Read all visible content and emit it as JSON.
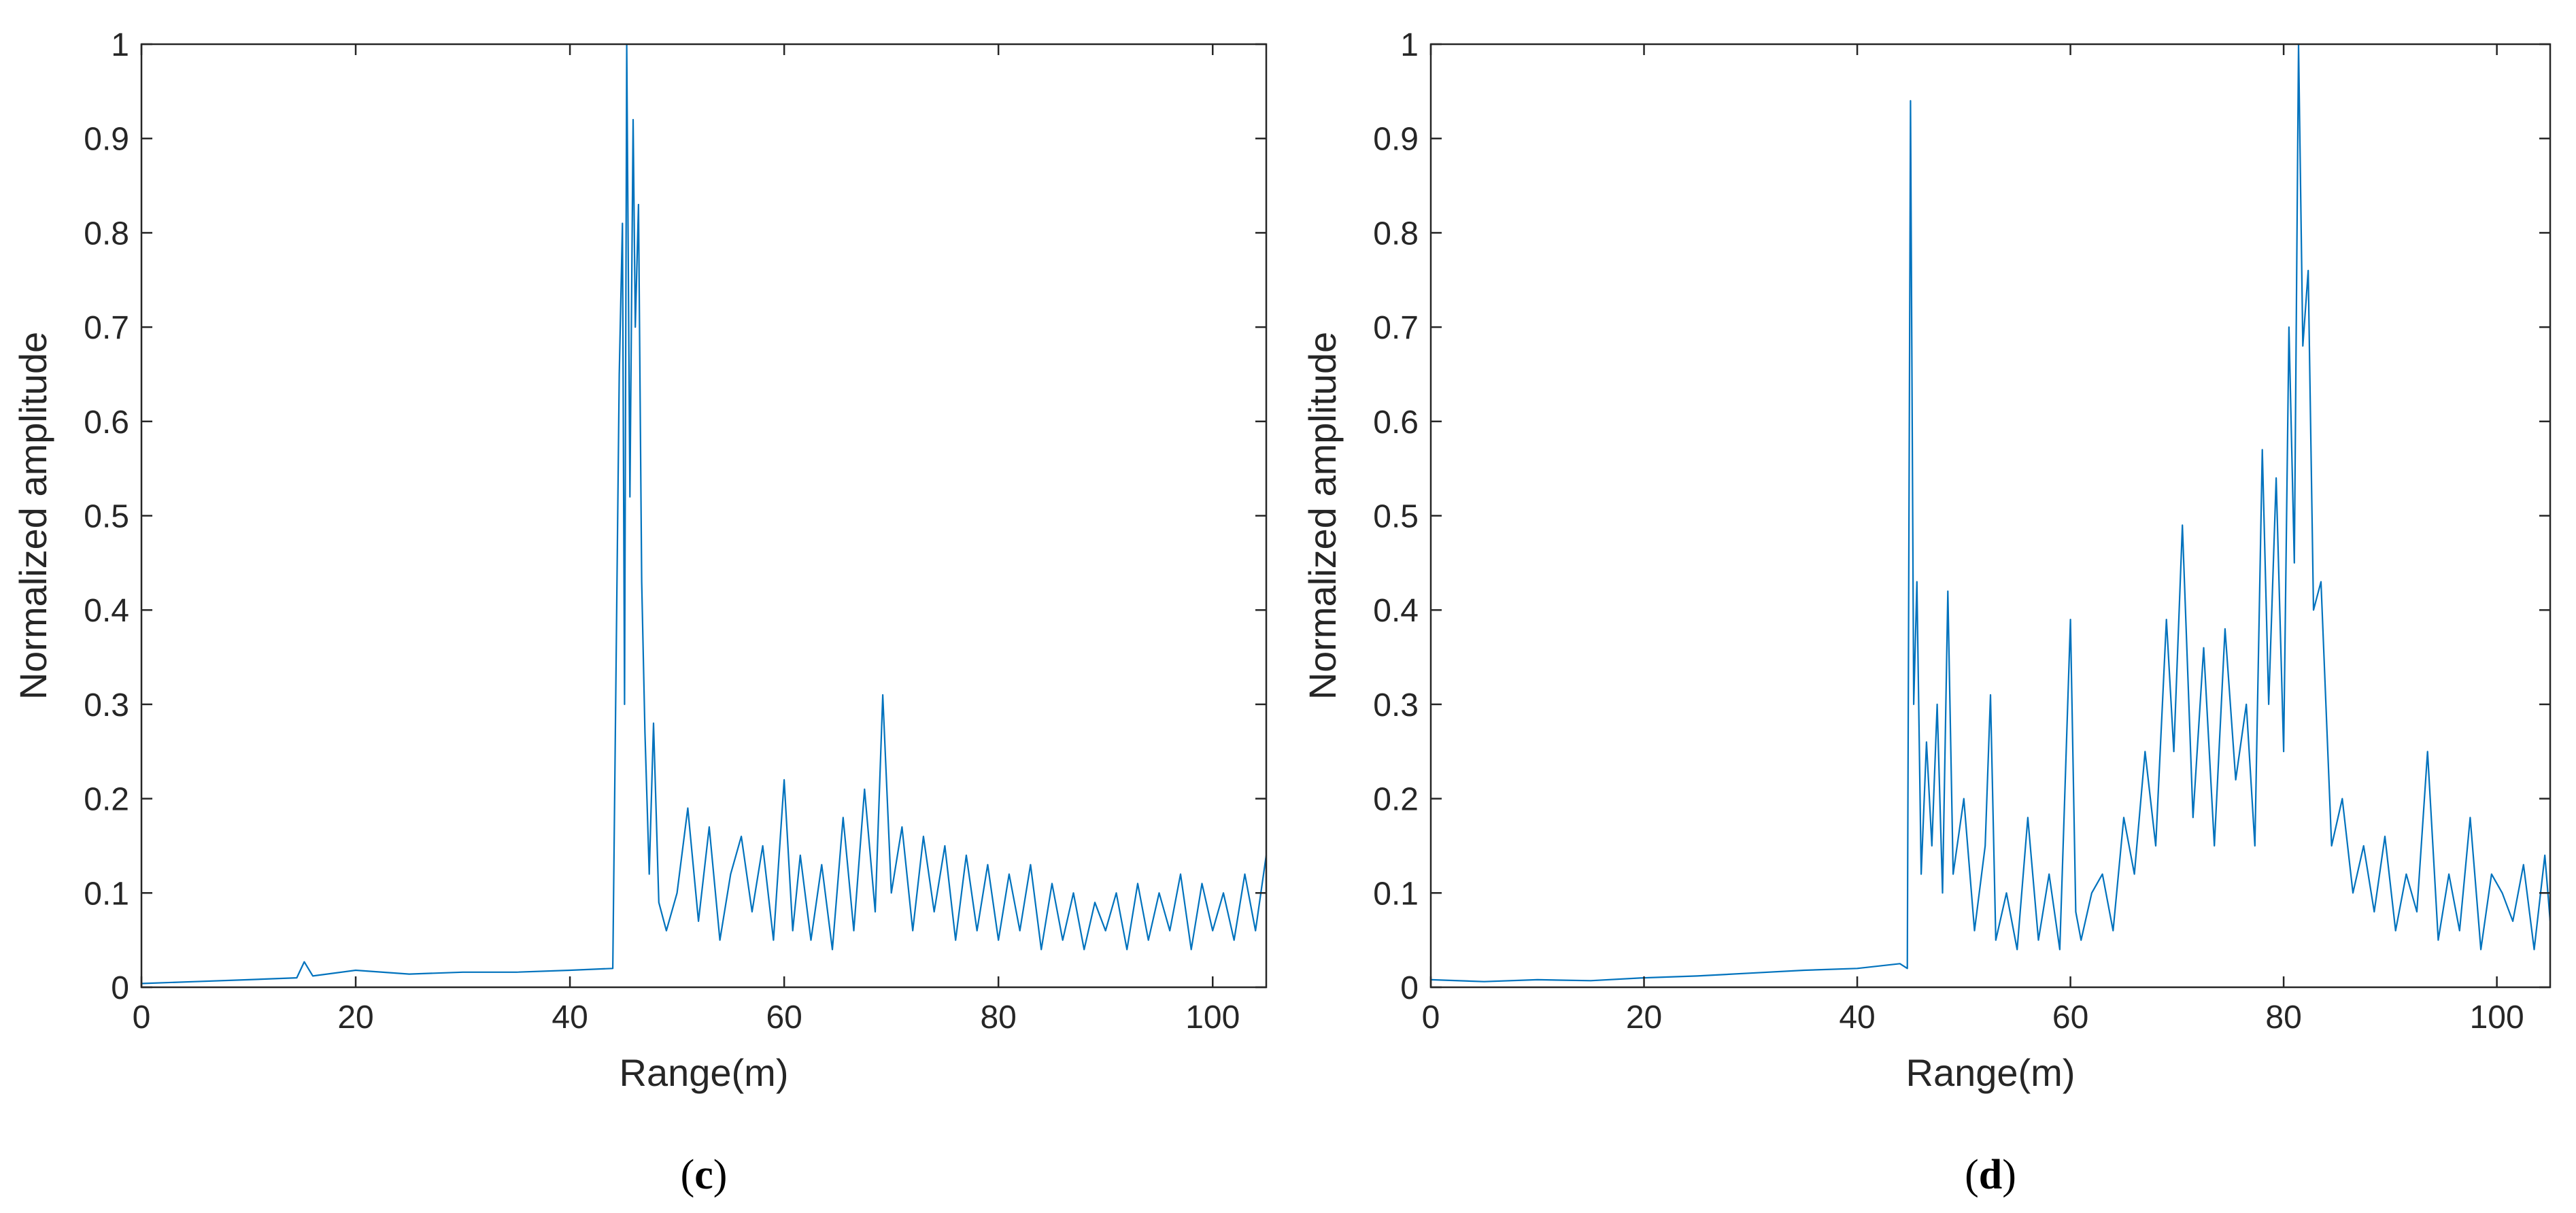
{
  "chart_data": [
    {
      "type": "line",
      "panel_label": "c",
      "xlabel": "Range(m)",
      "ylabel": "Normalized amplitude",
      "xlim": [
        0,
        105
      ],
      "ylim": [
        0,
        1
      ],
      "x_ticks": [
        0,
        20,
        40,
        60,
        80,
        100
      ],
      "y_ticks": [
        0,
        0.1,
        0.2,
        0.3,
        0.4,
        0.5,
        0.6,
        0.7,
        0.8,
        0.9,
        1
      ],
      "series": [
        {
          "name": "Normalized amplitude",
          "color": "#0072BD",
          "x": [
            0,
            5,
            10,
            14.5,
            15.2,
            16,
            20,
            25,
            30,
            35,
            40,
            44,
            44.6,
            44.9,
            45.1,
            45.3,
            45.6,
            45.9,
            46.1,
            46.4,
            46.7,
            47,
            47.4,
            47.8,
            48.3,
            49,
            50,
            51,
            52,
            53,
            54,
            55,
            56,
            57,
            58,
            59,
            60,
            60.8,
            61.5,
            62.5,
            63.5,
            64.5,
            65.5,
            66.5,
            67.5,
            68.5,
            69.2,
            70,
            71,
            72,
            73,
            74,
            75,
            76,
            77,
            78,
            79,
            80,
            81,
            82,
            83,
            84,
            85,
            86,
            87,
            88,
            89,
            90,
            91,
            92,
            93,
            94,
            95,
            96,
            97,
            98,
            99,
            100,
            101,
            102,
            103,
            104,
            105
          ],
          "y": [
            0.004,
            0.006,
            0.008,
            0.01,
            0.027,
            0.012,
            0.018,
            0.014,
            0.016,
            0.016,
            0.018,
            0.02,
            0.65,
            0.81,
            0.3,
            1.0,
            0.52,
            0.92,
            0.7,
            0.83,
            0.43,
            0.27,
            0.12,
            0.28,
            0.09,
            0.06,
            0.1,
            0.19,
            0.07,
            0.17,
            0.05,
            0.12,
            0.16,
            0.08,
            0.15,
            0.05,
            0.22,
            0.06,
            0.14,
            0.05,
            0.13,
            0.04,
            0.18,
            0.06,
            0.21,
            0.08,
            0.31,
            0.1,
            0.17,
            0.06,
            0.16,
            0.08,
            0.15,
            0.05,
            0.14,
            0.06,
            0.13,
            0.05,
            0.12,
            0.06,
            0.13,
            0.04,
            0.11,
            0.05,
            0.1,
            0.04,
            0.09,
            0.06,
            0.1,
            0.04,
            0.11,
            0.05,
            0.1,
            0.06,
            0.12,
            0.04,
            0.11,
            0.06,
            0.1,
            0.05,
            0.12,
            0.06,
            0.14
          ]
        }
      ]
    },
    {
      "type": "line",
      "panel_label": "d",
      "xlabel": "Range(m)",
      "ylabel": "Normalized amplitude",
      "xlim": [
        0,
        105
      ],
      "ylim": [
        0,
        1
      ],
      "x_ticks": [
        0,
        20,
        40,
        60,
        80,
        100
      ],
      "y_ticks": [
        0,
        0.1,
        0.2,
        0.3,
        0.4,
        0.5,
        0.6,
        0.7,
        0.8,
        0.9,
        1
      ],
      "series": [
        {
          "name": "Normalized amplitude",
          "color": "#0072BD",
          "x": [
            0,
            5,
            10,
            15,
            20,
            25,
            30,
            35,
            40,
            44,
            44.7,
            45,
            45.3,
            45.6,
            46,
            46.5,
            47,
            47.5,
            48,
            48.5,
            49,
            50,
            51,
            52,
            52.5,
            53,
            54,
            55,
            56,
            57,
            58,
            59,
            60,
            60.5,
            61,
            62,
            63,
            64,
            65,
            66,
            67,
            68,
            69,
            69.7,
            70.5,
            71.5,
            72.5,
            73.5,
            74.5,
            75.5,
            76.5,
            77.3,
            78,
            78.6,
            79.3,
            80,
            80.5,
            81,
            81.4,
            81.8,
            82.3,
            82.8,
            83.5,
            84.5,
            85.5,
            86.5,
            87.5,
            88.5,
            89.5,
            90.5,
            91.5,
            92.5,
            93.5,
            94.5,
            95.5,
            96.5,
            97.5,
            98.5,
            99.5,
            100.5,
            101.5,
            102.5,
            103.5,
            104.5,
            105
          ],
          "y": [
            0.008,
            0.006,
            0.008,
            0.007,
            0.01,
            0.012,
            0.015,
            0.018,
            0.02,
            0.025,
            0.02,
            0.94,
            0.3,
            0.43,
            0.12,
            0.26,
            0.15,
            0.3,
            0.1,
            0.42,
            0.12,
            0.2,
            0.06,
            0.15,
            0.31,
            0.05,
            0.1,
            0.04,
            0.18,
            0.05,
            0.12,
            0.04,
            0.39,
            0.08,
            0.05,
            0.1,
            0.12,
            0.06,
            0.18,
            0.12,
            0.25,
            0.15,
            0.39,
            0.25,
            0.49,
            0.18,
            0.36,
            0.15,
            0.38,
            0.22,
            0.3,
            0.15,
            0.57,
            0.3,
            0.54,
            0.25,
            0.7,
            0.45,
            1.0,
            0.68,
            0.76,
            0.4,
            0.43,
            0.15,
            0.2,
            0.1,
            0.15,
            0.08,
            0.16,
            0.06,
            0.12,
            0.08,
            0.25,
            0.05,
            0.12,
            0.06,
            0.18,
            0.04,
            0.12,
            0.1,
            0.07,
            0.13,
            0.04,
            0.14,
            0.07
          ]
        }
      ]
    }
  ]
}
